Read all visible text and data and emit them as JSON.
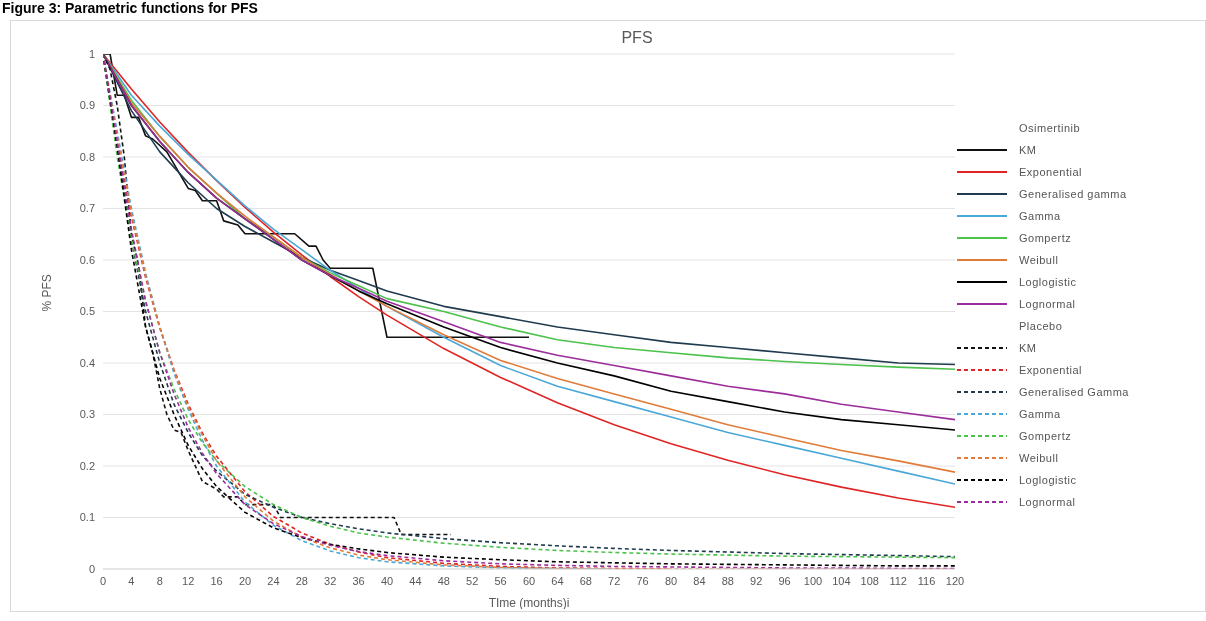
{
  "chart_data": {
    "type": "line",
    "title": "PFS",
    "xlabel": "TIme (months)i",
    "ylabel": "% PFS",
    "annotations": [
      "Figure 3: Parametric functions for PFS",
      "Osimertinib",
      "Placebo"
    ],
    "xlim": [
      0,
      120
    ],
    "xticks": [
      0,
      4,
      8,
      12,
      16,
      20,
      24,
      28,
      32,
      36,
      40,
      44,
      48,
      52,
      56,
      60,
      64,
      68,
      72,
      76,
      80,
      84,
      88,
      92,
      96,
      100,
      104,
      108,
      112,
      116,
      120
    ],
    "ylim": [
      0,
      1
    ],
    "yticks": [
      0,
      0.1,
      0.2,
      0.3,
      0.4,
      0.5,
      0.6,
      0.7,
      0.8,
      0.9,
      1
    ],
    "grid": "y",
    "legend": "right",
    "marker": "none",
    "series": [
      {
        "name": "KM",
        "color": "#111111",
        "line_style": "solid",
        "x": [
          0,
          1,
          2,
          3,
          4,
          5,
          6,
          7,
          9,
          12,
          13,
          14,
          16,
          17,
          19,
          20,
          27,
          29,
          30,
          31,
          32,
          38,
          40,
          60
        ],
        "values": [
          1,
          1,
          0.92,
          0.92,
          0.877,
          0.877,
          0.841,
          0.835,
          0.81,
          0.739,
          0.735,
          0.715,
          0.715,
          0.676,
          0.668,
          0.651,
          0.651,
          0.627,
          0.627,
          0.6,
          0.584,
          0.584,
          0.45,
          0.45
        ]
      },
      {
        "name": "Exponential",
        "color": "#e02424",
        "line_style": "solid",
        "x": [
          0,
          4,
          8,
          12,
          16,
          20,
          24,
          28,
          32,
          36,
          40,
          48,
          56,
          64,
          72,
          80,
          88,
          96,
          104,
          112,
          120
        ],
        "values": [
          1,
          0.932,
          0.868,
          0.809,
          0.754,
          0.702,
          0.654,
          0.61,
          0.568,
          0.529,
          0.493,
          0.428,
          0.372,
          0.323,
          0.28,
          0.243,
          0.211,
          0.183,
          0.159,
          0.138,
          0.12
        ]
      },
      {
        "name": "Generalised gamma",
        "color": "#1f3b4d",
        "line_style": "solid",
        "x": [
          0,
          4,
          8,
          12,
          16,
          20,
          24,
          28,
          32,
          36,
          40,
          48,
          56,
          64,
          72,
          80,
          88,
          96,
          104,
          112,
          120
        ],
        "values": [
          1,
          0.89,
          0.81,
          0.75,
          0.7,
          0.665,
          0.635,
          0.605,
          0.58,
          0.56,
          0.54,
          0.51,
          0.49,
          0.47,
          0.455,
          0.44,
          0.43,
          0.42,
          0.41,
          0.4,
          0.397
        ]
      },
      {
        "name": "Gamma",
        "color": "#4aa8d8",
        "line_style": "solid",
        "x": [
          0,
          4,
          8,
          12,
          16,
          20,
          24,
          28,
          32,
          36,
          40,
          48,
          56,
          64,
          72,
          80,
          88,
          96,
          104,
          112,
          120
        ],
        "values": [
          1,
          0.92,
          0.86,
          0.805,
          0.755,
          0.705,
          0.66,
          0.62,
          0.58,
          0.545,
          0.51,
          0.45,
          0.395,
          0.355,
          0.325,
          0.295,
          0.265,
          0.24,
          0.215,
          0.19,
          0.165
        ]
      },
      {
        "name": "Gompertz",
        "color": "#4cc14c",
        "line_style": "solid",
        "x": [
          0,
          4,
          8,
          12,
          16,
          20,
          24,
          28,
          32,
          36,
          40,
          48,
          56,
          64,
          72,
          80,
          88,
          96,
          104,
          112,
          120
        ],
        "values": [
          1,
          0.91,
          0.84,
          0.78,
          0.73,
          0.68,
          0.645,
          0.605,
          0.575,
          0.55,
          0.525,
          0.5,
          0.47,
          0.445,
          0.43,
          0.42,
          0.41,
          0.403,
          0.397,
          0.392,
          0.388
        ]
      },
      {
        "name": "Weibull",
        "color": "#e07b39",
        "line_style": "solid",
        "x": [
          0,
          4,
          8,
          12,
          16,
          20,
          24,
          28,
          32,
          36,
          40,
          48,
          56,
          64,
          72,
          80,
          88,
          96,
          104,
          112,
          120
        ],
        "values": [
          1,
          0.905,
          0.84,
          0.78,
          0.73,
          0.685,
          0.645,
          0.605,
          0.572,
          0.54,
          0.51,
          0.455,
          0.405,
          0.37,
          0.34,
          0.31,
          0.28,
          0.255,
          0.23,
          0.21,
          0.188
        ]
      },
      {
        "name": "Loglogistic",
        "color": "#000000",
        "line_style": "solid",
        "x": [
          0,
          4,
          8,
          12,
          16,
          20,
          24,
          28,
          32,
          36,
          40,
          48,
          56,
          64,
          72,
          80,
          88,
          96,
          104,
          112,
          120
        ],
        "values": [
          1,
          0.9,
          0.83,
          0.77,
          0.72,
          0.68,
          0.64,
          0.6,
          0.57,
          0.54,
          0.515,
          0.47,
          0.43,
          0.4,
          0.375,
          0.345,
          0.325,
          0.305,
          0.29,
          0.28,
          0.27
        ]
      },
      {
        "name": "Lognormal",
        "color": "#9b2d9b",
        "line_style": "solid",
        "x": [
          0,
          4,
          8,
          12,
          16,
          20,
          24,
          28,
          32,
          36,
          40,
          48,
          56,
          64,
          72,
          80,
          88,
          96,
          104,
          112,
          120
        ],
        "values": [
          1,
          0.9,
          0.83,
          0.77,
          0.72,
          0.68,
          0.64,
          0.6,
          0.57,
          0.545,
          0.52,
          0.48,
          0.44,
          0.415,
          0.395,
          0.375,
          0.355,
          0.34,
          0.32,
          0.305,
          0.29
        ]
      },
      {
        "name": "KM",
        "color": "#111111",
        "line_style": "dashed",
        "x": [
          0,
          1,
          2,
          3,
          4,
          5,
          6,
          7,
          8,
          9,
          10,
          11,
          12,
          13,
          14,
          16,
          17,
          19,
          20,
          24,
          25,
          41,
          42,
          49
        ],
        "values": [
          1,
          0.97,
          0.9,
          0.8,
          0.65,
          0.59,
          0.47,
          0.42,
          0.35,
          0.3,
          0.27,
          0.265,
          0.23,
          0.2,
          0.17,
          0.155,
          0.14,
          0.14,
          0.125,
          0.125,
          0.1,
          0.1,
          0.067,
          0.067
        ]
      },
      {
        "name": "Exponential",
        "color": "#e02424",
        "line_style": "dashed",
        "x": [
          0,
          2,
          4,
          6,
          8,
          10,
          12,
          14,
          16,
          20,
          24,
          28,
          32,
          36,
          40,
          48,
          56,
          64,
          72,
          80
        ],
        "values": [
          1,
          0.827,
          0.684,
          0.566,
          0.468,
          0.387,
          0.32,
          0.264,
          0.219,
          0.15,
          0.102,
          0.07,
          0.048,
          0.033,
          0.022,
          0.011,
          0.005,
          0.002,
          0.001,
          0
        ]
      },
      {
        "name": "Generalised Gamma",
        "color": "#1f3b4d",
        "line_style": "dashed",
        "x": [
          0,
          2,
          4,
          6,
          8,
          10,
          12,
          14,
          16,
          20,
          24,
          28,
          32,
          36,
          40,
          48,
          56,
          64,
          72,
          80,
          88,
          96,
          104,
          112,
          120
        ],
        "values": [
          1,
          0.82,
          0.64,
          0.5,
          0.4,
          0.32,
          0.265,
          0.22,
          0.19,
          0.145,
          0.12,
          0.1,
          0.088,
          0.078,
          0.07,
          0.059,
          0.051,
          0.045,
          0.04,
          0.036,
          0.033,
          0.03,
          0.028,
          0.026,
          0.024
        ]
      },
      {
        "name": "Gamma",
        "color": "#4aa8d8",
        "line_style": "dashed",
        "x": [
          0,
          2,
          4,
          6,
          8,
          10,
          12,
          14,
          16,
          20,
          24,
          28,
          32,
          36,
          40,
          48,
          56,
          64,
          72
        ],
        "values": [
          1,
          0.85,
          0.7,
          0.575,
          0.47,
          0.38,
          0.31,
          0.25,
          0.2,
          0.13,
          0.085,
          0.055,
          0.035,
          0.022,
          0.014,
          0.006,
          0.002,
          0.001,
          0
        ]
      },
      {
        "name": "Gompertz",
        "color": "#4cc14c",
        "line_style": "dashed",
        "x": [
          0,
          2,
          4,
          6,
          8,
          10,
          12,
          14,
          16,
          20,
          24,
          28,
          32,
          36,
          40,
          48,
          56,
          64,
          72,
          80,
          88,
          96,
          104,
          112,
          120
        ],
        "values": [
          1,
          0.8,
          0.64,
          0.52,
          0.42,
          0.35,
          0.29,
          0.245,
          0.21,
          0.16,
          0.125,
          0.1,
          0.083,
          0.07,
          0.062,
          0.05,
          0.042,
          0.036,
          0.032,
          0.029,
          0.027,
          0.025,
          0.024,
          0.023,
          0.022
        ]
      },
      {
        "name": "Weibull",
        "color": "#e07b39",
        "line_style": "dashed",
        "x": [
          0,
          2,
          4,
          6,
          8,
          10,
          12,
          14,
          16,
          20,
          24,
          28,
          32,
          36,
          40,
          48,
          56,
          64,
          72,
          80,
          88,
          96,
          104,
          112,
          120
        ],
        "values": [
          1,
          0.84,
          0.69,
          0.57,
          0.47,
          0.385,
          0.315,
          0.26,
          0.21,
          0.14,
          0.093,
          0.062,
          0.041,
          0.027,
          0.018,
          0.008,
          0.003,
          0.001,
          0,
          0,
          0,
          0,
          0,
          0,
          0
        ]
      },
      {
        "name": "Loglogistic",
        "color": "#000000",
        "line_style": "dashed",
        "x": [
          0,
          2,
          4,
          6,
          8,
          10,
          12,
          14,
          16,
          20,
          24,
          28,
          32,
          36,
          40,
          48,
          56,
          64,
          72,
          80,
          88,
          96,
          104,
          112,
          120
        ],
        "values": [
          1,
          0.82,
          0.62,
          0.47,
          0.37,
          0.3,
          0.24,
          0.195,
          0.16,
          0.11,
          0.08,
          0.061,
          0.048,
          0.039,
          0.032,
          0.023,
          0.018,
          0.014,
          0.012,
          0.01,
          0.009,
          0.008,
          0.007,
          0.006,
          0.006
        ]
      },
      {
        "name": "Lognormal",
        "color": "#9b2d9b",
        "line_style": "dashed",
        "x": [
          0,
          2,
          4,
          6,
          8,
          10,
          12,
          14,
          16,
          20,
          24,
          28,
          32,
          36,
          40,
          48,
          56,
          64,
          72,
          80,
          88,
          96,
          104,
          112,
          120
        ],
        "values": [
          1,
          0.83,
          0.66,
          0.52,
          0.42,
          0.34,
          0.275,
          0.225,
          0.185,
          0.125,
          0.088,
          0.063,
          0.046,
          0.034,
          0.026,
          0.016,
          0.01,
          0.007,
          0.005,
          0.004,
          0.003,
          0.002,
          0.002,
          0.001,
          0.001
        ]
      }
    ]
  }
}
